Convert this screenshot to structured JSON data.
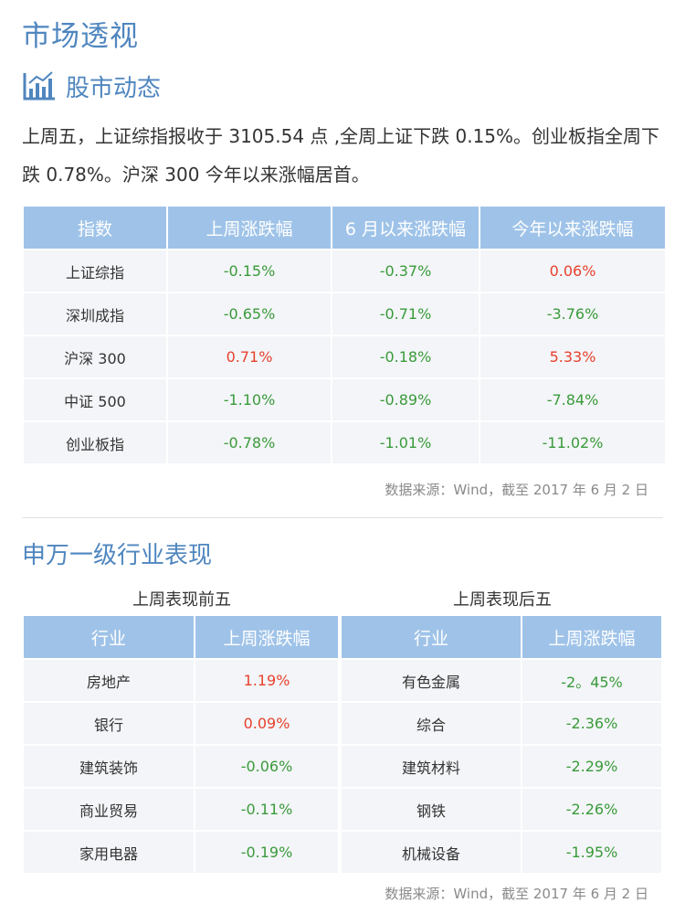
{
  "page": {
    "title": "市场透视"
  },
  "stock_section": {
    "heading": "股市动态",
    "intro": "上周五，上证综指报收于 3105.54 点 ,全周上证下跌 0.15%。创业板指全周下跌 0.78%。沪深 300 今年以来涨幅居首。"
  },
  "index_table": {
    "headers": [
      "指数",
      "上周涨跌幅",
      "6 月以来涨跌幅",
      "今年以来涨跌幅"
    ],
    "rows": [
      {
        "name": "上证综指",
        "week": "-0.15%",
        "june": "-0.37%",
        "ytd": "0.06%"
      },
      {
        "name": "深圳成指",
        "week": "-0.65%",
        "june": "-0.71%",
        "ytd": "-3.76%"
      },
      {
        "name": "沪深 300",
        "week": "0.71%",
        "june": "-0.18%",
        "ytd": "5.33%"
      },
      {
        "name": "中证 500",
        "week": "-1.10%",
        "june": "-0.89%",
        "ytd": "-7.84%"
      },
      {
        "name": "创业板指",
        "week": "-0.78%",
        "june": "-1.01%",
        "ytd": "-11.02%"
      }
    ],
    "source": "数据来源：Wind，截至 2017 年 6 月 2 日"
  },
  "industry_section": {
    "heading": "申万一级行业表现",
    "top5": {
      "caption": "上周表现前五",
      "headers": [
        "行业",
        "上周涨跌幅"
      ],
      "rows": [
        {
          "name": "房地产",
          "value": "1.19%"
        },
        {
          "name": "银行",
          "value": "0.09%"
        },
        {
          "name": "建筑装饰",
          "value": "-0.06%"
        },
        {
          "name": "商业贸易",
          "value": "-0.11%"
        },
        {
          "name": "家用电器",
          "value": "-0.19%"
        }
      ]
    },
    "bottom5": {
      "caption": "上周表现后五",
      "headers": [
        "行业",
        "上周涨跌幅"
      ],
      "rows": [
        {
          "name": "有色金属",
          "value": "-2。45%"
        },
        {
          "name": "综合",
          "value": "-2.36%"
        },
        {
          "name": "建筑材料",
          "value": "-2.29%"
        },
        {
          "name": "钢铁",
          "value": "-2.26%"
        },
        {
          "name": "机械设备",
          "value": "-1.95%"
        }
      ]
    },
    "source": "数据来源：Wind，截至 2017 年 6 月 2 日"
  },
  "colors": {
    "accent": "#4f86bf",
    "header_bg": "#9fc3e8",
    "cell_bg": "#f3f5f8",
    "positive": "#e8412d",
    "negative": "#3a9a3a"
  },
  "icons": {
    "section_icon": "bar-chart-icon"
  }
}
